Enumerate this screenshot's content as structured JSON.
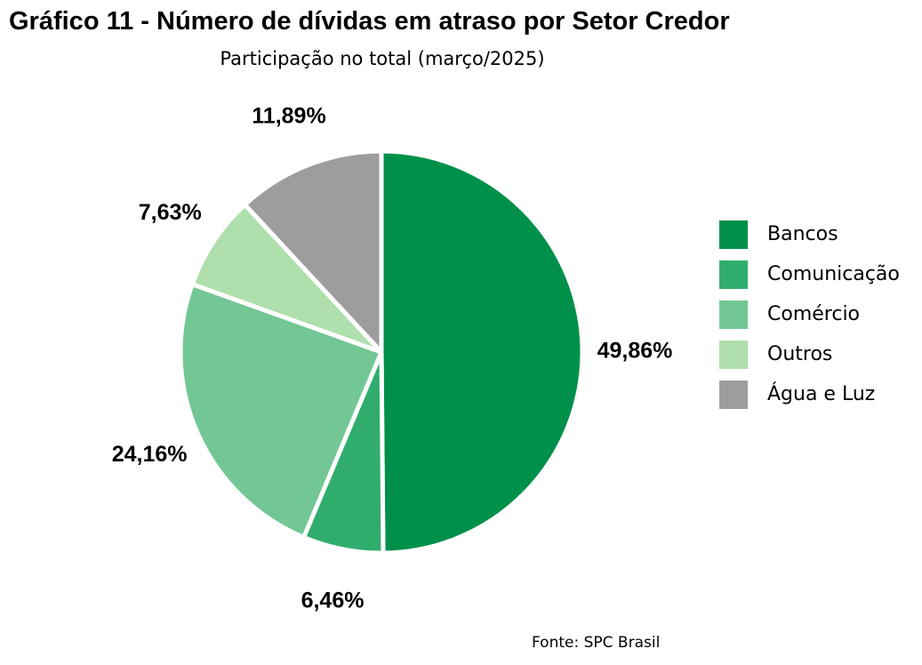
{
  "chart_data": {
    "type": "pie",
    "title": "Gráfico 11 - Número de dívidas em atraso por Setor Credor",
    "subtitle": "Participação no total (março/2025)",
    "source": "Fonte: SPC Brasil",
    "legend_position": "right",
    "slices": [
      {
        "name": "Bancos",
        "value": 49.86,
        "label": "49,86%",
        "color": "#00904a"
      },
      {
        "name": "Comunicação",
        "value": 6.46,
        "label": "6,46%",
        "color": "#30ad6d"
      },
      {
        "name": "Comércio",
        "value": 24.16,
        "label": "24,16%",
        "color": "#72c794"
      },
      {
        "name": "Outros",
        "value": 7.63,
        "label": "7,63%",
        "color": "#aedfac"
      },
      {
        "name": "Água e Luz",
        "value": 11.89,
        "label": "11,89%",
        "color": "#9d9d9d"
      }
    ]
  }
}
